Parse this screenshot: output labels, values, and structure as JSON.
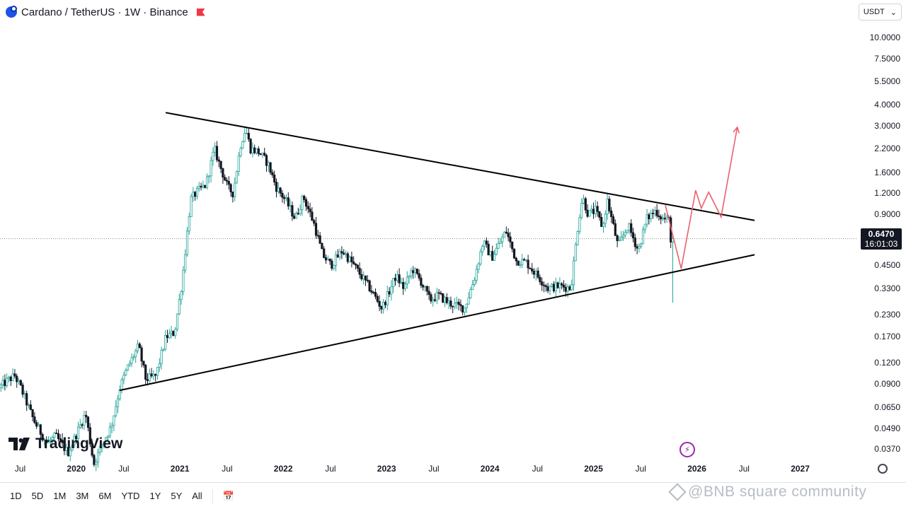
{
  "header": {
    "title": "Cardano / TetherUS · 1W · Binance",
    "logo_icon": "cardano-logo-icon",
    "flag_icon": "red-flag-icon"
  },
  "currency_selector": {
    "label": "USDT"
  },
  "price_badge": {
    "price": "0.6470",
    "countdown": "16:01:03"
  },
  "brand": {
    "name": "TradingView"
  },
  "timeframes": [
    "1D",
    "5D",
    "1M",
    "3M",
    "6M",
    "YTD",
    "1Y",
    "5Y",
    "All"
  ],
  "watermark": "@BNB square community",
  "colors": {
    "up": "#26a69a",
    "down": "#131722",
    "up_fill": "#ffffff",
    "trendline": "#000000",
    "projection": "#e8616f",
    "price_line": "#888888"
  },
  "chart_data": {
    "type": "candlestick",
    "symbol": "Cardano / TetherUS",
    "interval": "1W",
    "exchange": "Binance",
    "y_scale": "log",
    "ylim": [
      0.032,
      12.5
    ],
    "y_ticks": [
      "10.0000",
      "7.5000",
      "5.5000",
      "4.0000",
      "3.0000",
      "2.2000",
      "1.6000",
      "1.2000",
      "0.9000",
      "0.4500",
      "0.3300",
      "0.2300",
      "0.1700",
      "0.1200",
      "0.0900",
      "0.0650",
      "0.0490",
      "0.0370"
    ],
    "x_ticks": [
      "Jul",
      "2020",
      "Jul",
      "2021",
      "Jul",
      "2022",
      "Jul",
      "2023",
      "Jul",
      "2024",
      "Jul",
      "2025",
      "Jul",
      "2026",
      "Jul",
      "2027"
    ],
    "xlim": [
      "2019-04-15",
      "2027-08-01"
    ],
    "current_price": 0.647,
    "price_path": [
      [
        "2019-04-15",
        0.085
      ],
      [
        "2019-05-20",
        0.095
      ],
      [
        "2019-06-10",
        0.1
      ],
      [
        "2019-07-01",
        0.085
      ],
      [
        "2019-08-15",
        0.055
      ],
      [
        "2019-10-01",
        0.04
      ],
      [
        "2019-11-01",
        0.044
      ],
      [
        "2019-12-15",
        0.035
      ],
      [
        "2020-02-15",
        0.06
      ],
      [
        "2020-03-15",
        0.03
      ],
      [
        "2020-04-15",
        0.04
      ],
      [
        "2020-05-15",
        0.05
      ],
      [
        "2020-06-15",
        0.085
      ],
      [
        "2020-07-10",
        0.11
      ],
      [
        "2020-08-20",
        0.15
      ],
      [
        "2020-09-15",
        0.095
      ],
      [
        "2020-10-20",
        0.1
      ],
      [
        "2020-11-25",
        0.17
      ],
      [
        "2020-12-25",
        0.18
      ],
      [
        "2021-01-20",
        0.35
      ],
      [
        "2021-02-20",
        1.1
      ],
      [
        "2021-03-10",
        1.2
      ],
      [
        "2021-04-15",
        1.35
      ],
      [
        "2021-05-15",
        2.2
      ],
      [
        "2021-06-01",
        1.8
      ],
      [
        "2021-07-01",
        1.3
      ],
      [
        "2021-07-20",
        1.2
      ],
      [
        "2021-08-15",
        2.3
      ],
      [
        "2021-09-02",
        2.9
      ],
      [
        "2021-09-20",
        2.2
      ],
      [
        "2021-10-20",
        2.1
      ],
      [
        "2021-11-20",
        1.8
      ],
      [
        "2021-12-20",
        1.3
      ],
      [
        "2022-01-20",
        1.1
      ],
      [
        "2022-02-25",
        0.85
      ],
      [
        "2022-03-25",
        1.15
      ],
      [
        "2022-05-01",
        0.8
      ],
      [
        "2022-06-01",
        0.52
      ],
      [
        "2022-07-01",
        0.45
      ],
      [
        "2022-08-10",
        0.55
      ],
      [
        "2022-09-20",
        0.45
      ],
      [
        "2022-10-20",
        0.38
      ],
      [
        "2022-11-20",
        0.32
      ],
      [
        "2022-12-28",
        0.25
      ],
      [
        "2023-02-15",
        0.39
      ],
      [
        "2023-03-15",
        0.33
      ],
      [
        "2023-04-15",
        0.43
      ],
      [
        "2023-05-15",
        0.36
      ],
      [
        "2023-06-15",
        0.28
      ],
      [
        "2023-07-15",
        0.3
      ],
      [
        "2023-08-20",
        0.27
      ],
      [
        "2023-10-15",
        0.25
      ],
      [
        "2023-11-20",
        0.38
      ],
      [
        "2023-12-20",
        0.62
      ],
      [
        "2024-01-20",
        0.5
      ],
      [
        "2024-03-10",
        0.72
      ],
      [
        "2024-04-15",
        0.48
      ],
      [
        "2024-05-20",
        0.47
      ],
      [
        "2024-07-05",
        0.38
      ],
      [
        "2024-08-05",
        0.33
      ],
      [
        "2024-09-15",
        0.34
      ],
      [
        "2024-10-25",
        0.33
      ],
      [
        "2024-11-20",
        0.8
      ],
      [
        "2024-12-05",
        1.15
      ],
      [
        "2024-12-25",
        0.9
      ],
      [
        "2025-01-20",
        0.95
      ],
      [
        "2025-02-15",
        0.75
      ],
      [
        "2025-03-02",
        1.1
      ],
      [
        "2025-04-10",
        0.58
      ],
      [
        "2025-05-15",
        0.78
      ],
      [
        "2025-06-20",
        0.55
      ],
      [
        "2025-07-20",
        0.85
      ],
      [
        "2025-08-20",
        0.95
      ],
      [
        "2025-09-15",
        0.85
      ],
      [
        "2025-10-08",
        0.83
      ],
      [
        "2025-10-13",
        0.647
      ]
    ],
    "trendlines": [
      {
        "name": "upper",
        "from": [
          "2020-11-20",
          3.6
        ],
        "to": [
          "2026-08-01",
          0.83
        ]
      },
      {
        "name": "lower",
        "from": [
          "2020-06-10",
          0.082
        ],
        "to": [
          "2026-08-01",
          0.52
        ]
      }
    ],
    "projection": [
      [
        "2025-09-20",
        1.02
      ],
      [
        "2025-11-15",
        0.43
      ],
      [
        "2026-01-05",
        1.25
      ],
      [
        "2026-01-25",
        0.98
      ],
      [
        "2026-02-20",
        1.22
      ],
      [
        "2026-04-05",
        0.87
      ],
      [
        "2026-06-01",
        2.95
      ]
    ]
  }
}
